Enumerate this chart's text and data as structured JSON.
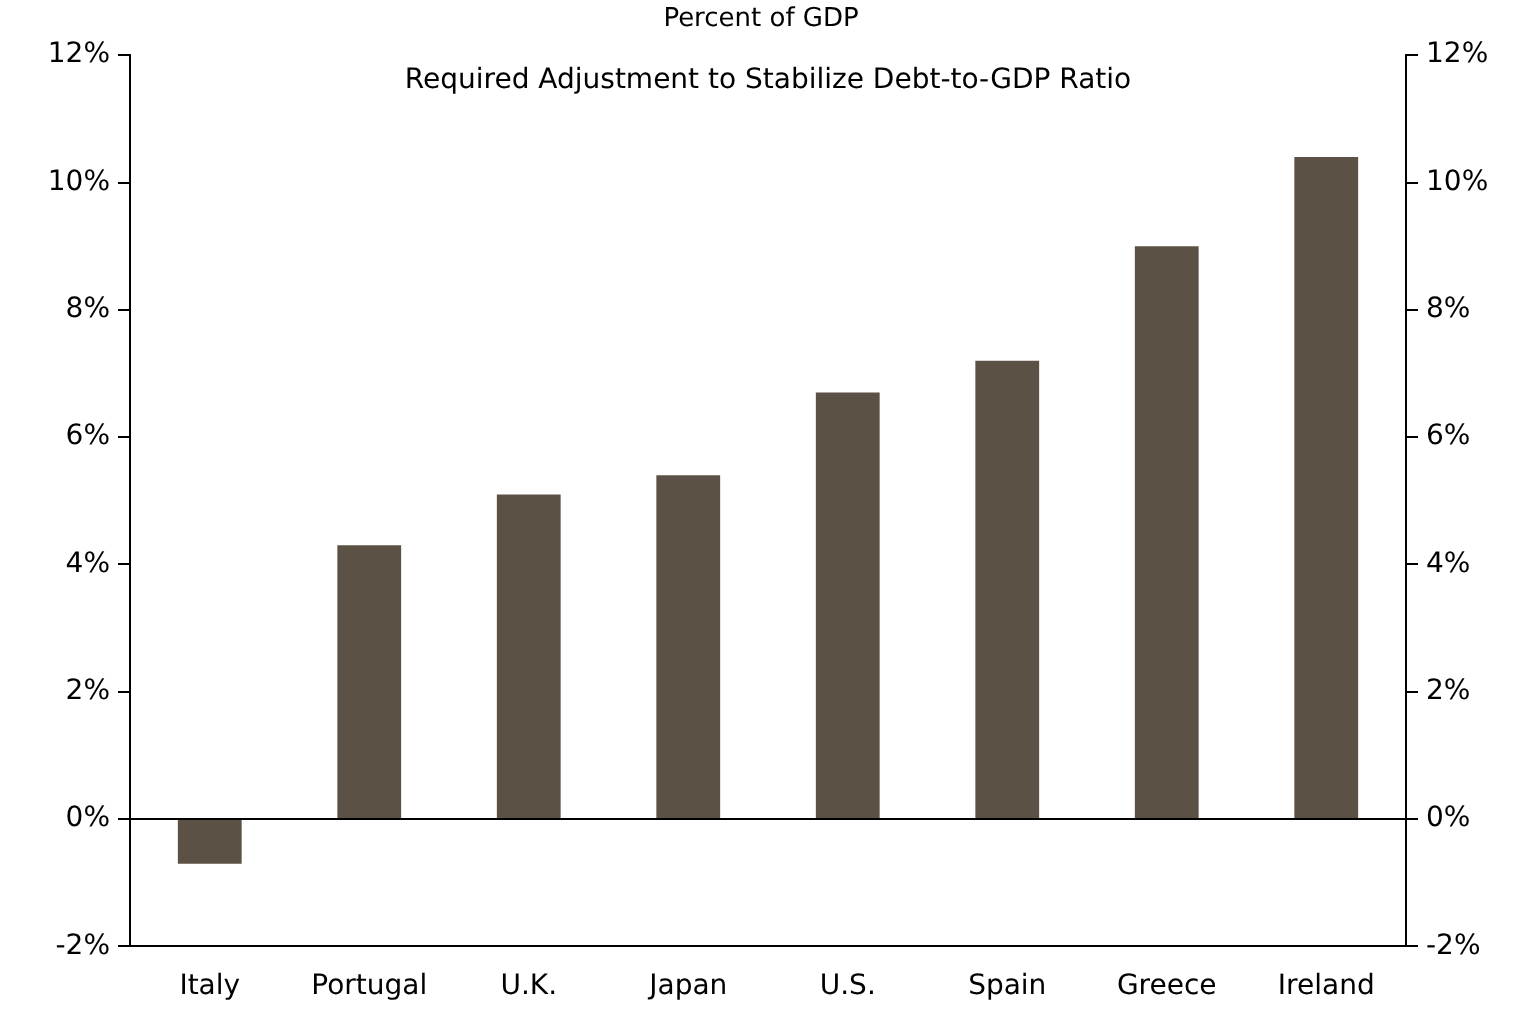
{
  "chart_data": {
    "type": "bar",
    "subtitle": "Percent of GDP",
    "annotations": [
      "Required Adjustment to Stabilize Debt-to-GDP Ratio"
    ],
    "categories": [
      "Italy",
      "Portugal",
      "U.K.",
      "Japan",
      "U.S.",
      "Spain",
      "Greece",
      "Ireland"
    ],
    "values": [
      -0.7,
      4.3,
      5.1,
      5.4,
      6.7,
      7.2,
      9.0,
      10.4
    ],
    "color": "#5c5145",
    "ylim": [
      -2,
      12
    ],
    "yticks": [
      {
        "value": -2,
        "label": "-2%"
      },
      {
        "value": 0,
        "label": "0%"
      },
      {
        "value": 2,
        "label": "2%"
      },
      {
        "value": 4,
        "label": "4%"
      },
      {
        "value": 6,
        "label": "6%"
      },
      {
        "value": 8,
        "label": "8%"
      },
      {
        "value": 10,
        "label": "10%"
      },
      {
        "value": 12,
        "label": "12%"
      }
    ],
    "y2lim": [
      -2,
      12
    ],
    "y2ticks": [
      {
        "value": -2,
        "label": "-2%"
      },
      {
        "value": 0,
        "label": "0%"
      },
      {
        "value": 2,
        "label": "2%"
      },
      {
        "value": 4,
        "label": "4%"
      },
      {
        "value": 6,
        "label": "6%"
      },
      {
        "value": 8,
        "label": "8%"
      },
      {
        "value": 10,
        "label": "10%"
      },
      {
        "value": 12,
        "label": "12%"
      }
    ],
    "ref_lines": [
      {
        "axis": "y",
        "value": 0,
        "color": "#000000"
      }
    ],
    "grid": false,
    "legend": false
  }
}
